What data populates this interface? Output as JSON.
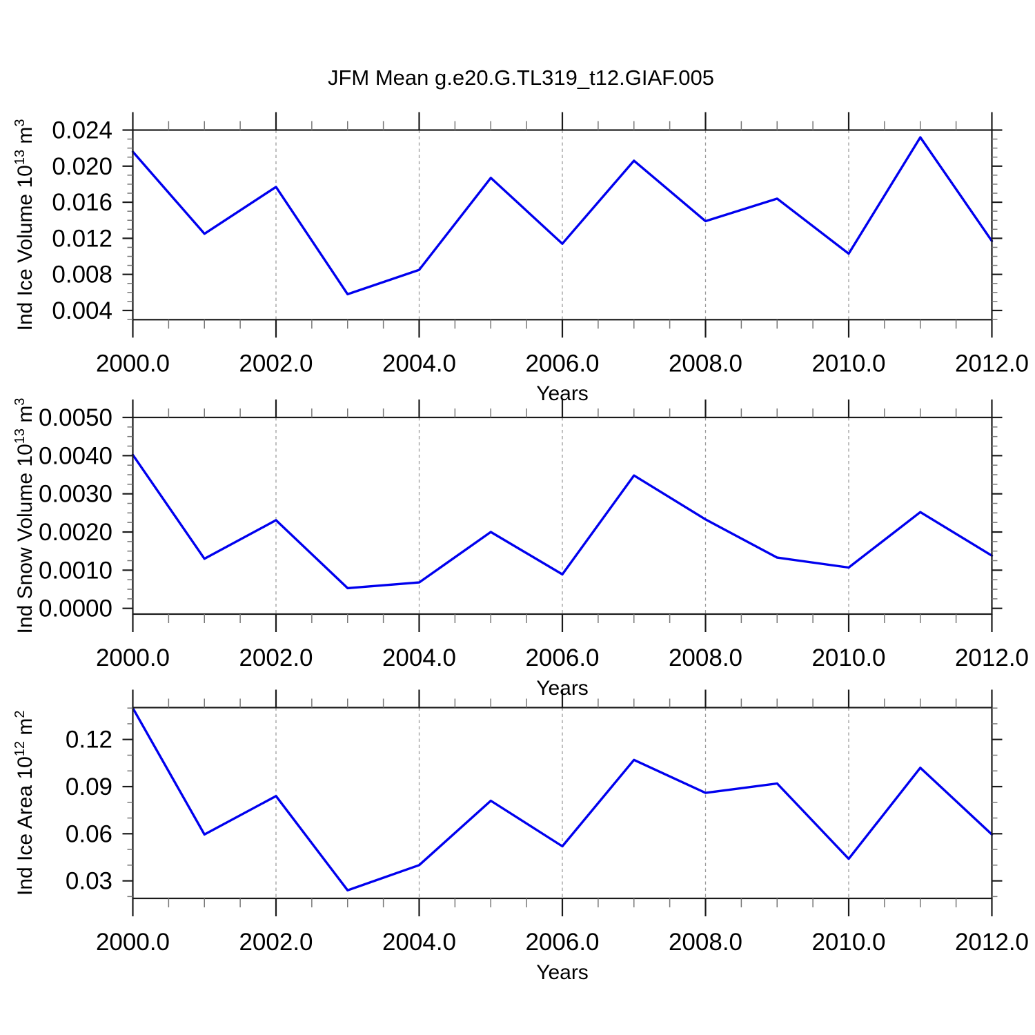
{
  "title": "JFM Mean g.e20.G.TL319_t12.GIAF.005",
  "x_axis": {
    "label": "Years",
    "lim": [
      2000,
      2012
    ],
    "major_ticks": [
      2000,
      2002,
      2004,
      2006,
      2008,
      2010,
      2012
    ],
    "major_tick_labels": [
      "2000.0",
      "2002.0",
      "2004.0",
      "2006.0",
      "2008.0",
      "2010.0",
      "2012.0"
    ],
    "minor_step": 0.5,
    "gridlines": [
      2002,
      2004,
      2006,
      2008,
      2010
    ]
  },
  "colors": {
    "line": "#0000ee",
    "frame": "#1a1a1a",
    "major_tick": "#1a1a1a",
    "minor_tick": "#777777",
    "gridline": "#999999",
    "text": "#000000",
    "background": "#ffffff"
  },
  "chart_data": [
    {
      "type": "line",
      "name": "ice-volume",
      "title": "",
      "xlabel": "Years",
      "ylabel": "Ind Ice Volume 10¹³ m³",
      "ylabel_parts": [
        {
          "t": "Ind Ice Volume 10"
        },
        {
          "t": "13",
          "sup": true
        },
        {
          "t": " m"
        },
        {
          "t": "3",
          "sup": true
        }
      ],
      "x": [
        2000,
        2001,
        2002,
        2003,
        2004,
        2005,
        2006,
        2007,
        2008,
        2009,
        2010,
        2011,
        2012
      ],
      "values": [
        0.0216,
        0.0125,
        0.0177,
        0.0058,
        0.0085,
        0.0187,
        0.0114,
        0.0206,
        0.0139,
        0.0164,
        0.0103,
        0.0232,
        0.0117
      ],
      "yticks": [
        0.004,
        0.008,
        0.012,
        0.016,
        0.02,
        0.024
      ],
      "ytick_labels": [
        "0.004",
        "0.008",
        "0.012",
        "0.016",
        "0.020",
        "0.024"
      ],
      "y_minor_step": 0.001,
      "ylim": [
        0.00298,
        0.024
      ],
      "grid": "vertical-dashed",
      "legend": "none"
    },
    {
      "type": "line",
      "name": "snow-volume",
      "title": "",
      "xlabel": "Years",
      "ylabel": "Ind Snow Volume 10¹³ m³",
      "ylabel_parts": [
        {
          "t": "Ind Snow Volume 10"
        },
        {
          "t": "13",
          "sup": true
        },
        {
          "t": " m"
        },
        {
          "t": "3",
          "sup": true
        }
      ],
      "x": [
        2000,
        2001,
        2002,
        2003,
        2004,
        2005,
        2006,
        2007,
        2008,
        2009,
        2010,
        2011,
        2012
      ],
      "values": [
        0.00402,
        0.0013,
        0.00231,
        0.00053,
        0.00068,
        0.002,
        0.00089,
        0.00348,
        0.00233,
        0.00133,
        0.00107,
        0.00252,
        0.00138
      ],
      "yticks": [
        0.0,
        0.001,
        0.002,
        0.003,
        0.004,
        0.005
      ],
      "ytick_labels": [
        "0.0000",
        "0.0010",
        "0.0020",
        "0.0030",
        "0.0040",
        "0.0050"
      ],
      "y_minor_step": 0.00025,
      "ylim": [
        -0.00015,
        0.005
      ],
      "grid": "vertical-dashed",
      "legend": "none"
    },
    {
      "type": "line",
      "name": "ice-area",
      "title": "",
      "xlabel": "Years",
      "ylabel": "Ind Ice Area 10¹² m²",
      "ylabel_parts": [
        {
          "t": "Ind Ice Area 10"
        },
        {
          "t": "12",
          "sup": true
        },
        {
          "t": " m"
        },
        {
          "t": "2",
          "sup": true
        }
      ],
      "x": [
        2000,
        2001,
        2002,
        2003,
        2004,
        2005,
        2006,
        2007,
        2008,
        2009,
        2010,
        2011,
        2012
      ],
      "values": [
        0.14,
        0.0595,
        0.084,
        0.024,
        0.04,
        0.081,
        0.052,
        0.107,
        0.086,
        0.092,
        0.044,
        0.102,
        0.0595
      ],
      "yticks": [
        0.03,
        0.06,
        0.09,
        0.12
      ],
      "ytick_labels": [
        "0.03",
        "0.06",
        "0.09",
        "0.12"
      ],
      "y_minor_step": 0.01,
      "ylim": [
        0.01884,
        0.1403
      ],
      "grid": "vertical-dashed",
      "legend": "none"
    }
  ]
}
